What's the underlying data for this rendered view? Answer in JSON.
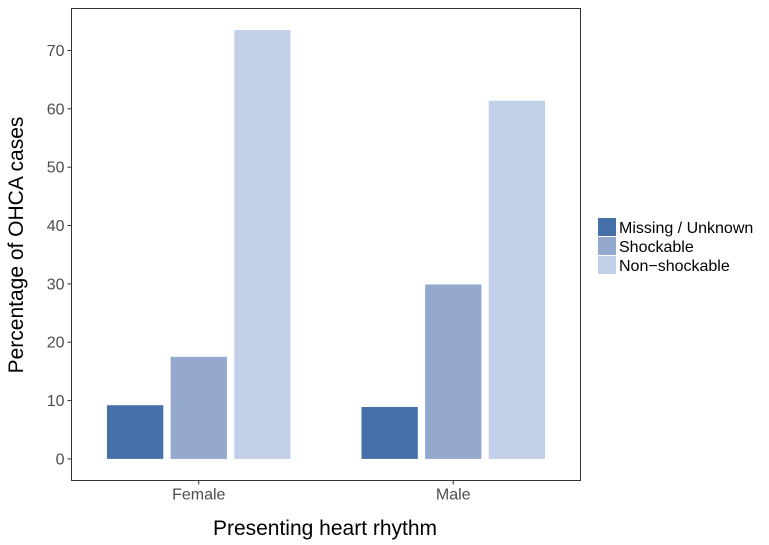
{
  "chart_data": {
    "type": "bar",
    "title": "",
    "xlabel": "Presenting heart rhythm",
    "ylabel": "Percentage of OHCA cases",
    "categories": [
      "Female",
      "Male"
    ],
    "series": [
      {
        "name": "Missing / Unknown",
        "values": [
          9.2,
          8.9
        ],
        "color": "#4571a8"
      },
      {
        "name": "Shockable",
        "values": [
          17.5,
          29.9
        ],
        "color": "#95a9cf"
      },
      {
        "name": "Non−shockable",
        "values": [
          73.5,
          61.4
        ],
        "color": "#c2d0e9"
      }
    ],
    "ylim": [
      -3.7,
      77.2
    ],
    "yticks": [
      0,
      10,
      20,
      30,
      40,
      50,
      60,
      70
    ],
    "ytick_labels": [
      "0",
      "10",
      "20",
      "30",
      "40",
      "50",
      "60",
      "70"
    ],
    "grid": false,
    "legend_position": "right"
  }
}
